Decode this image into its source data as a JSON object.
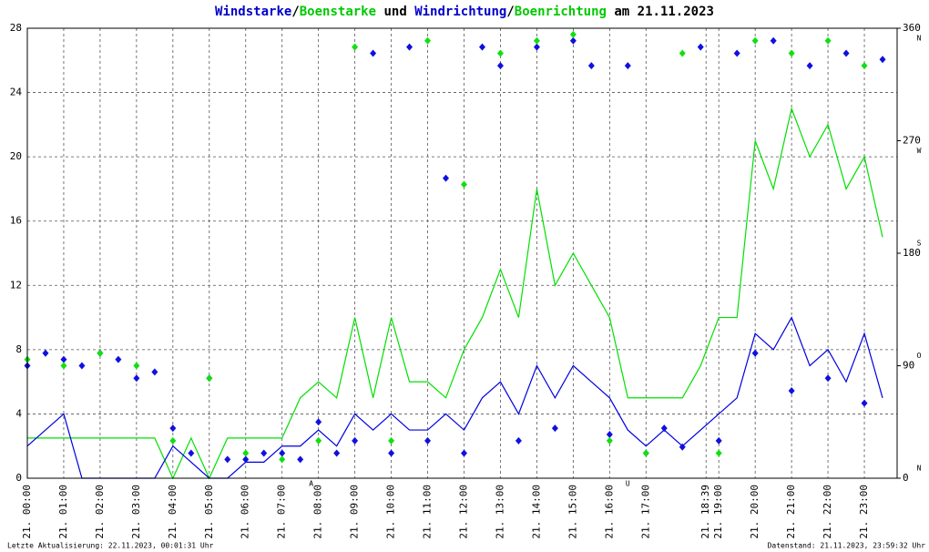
{
  "chart_data": {
    "type": "line",
    "title_parts": [
      {
        "text": "Windstarke",
        "color": "#0000c8"
      },
      {
        "text": "/",
        "color": "#000000"
      },
      {
        "text": "Boenstarke",
        "color": "#00c800"
      },
      {
        "text": " und ",
        "color": "#000000"
      },
      {
        "text": "Windrichtung",
        "color": "#0000c8"
      },
      {
        "text": "/",
        "color": "#000000"
      },
      {
        "text": "Boenrichtung",
        "color": "#00c800"
      },
      {
        "text": " am 21.11.2023",
        "color": "#000000"
      }
    ],
    "xlim": [
      0,
      23.9
    ],
    "xticks": [
      {
        "value": 0,
        "label": "21. 00:00"
      },
      {
        "value": 1,
        "label": "21. 01:00"
      },
      {
        "value": 2,
        "label": "21. 02:00"
      },
      {
        "value": 3,
        "label": "21. 03:00"
      },
      {
        "value": 4,
        "label": "21. 04:00"
      },
      {
        "value": 5,
        "label": "21. 05:00"
      },
      {
        "value": 6,
        "label": "21. 06:00"
      },
      {
        "value": 7,
        "label": "21. 07:00"
      },
      {
        "value": 8,
        "label": "21. 08:00"
      },
      {
        "value": 9,
        "label": "21. 09:00"
      },
      {
        "value": 10,
        "label": "21. 10:00"
      },
      {
        "value": 11,
        "label": "21. 11:00"
      },
      {
        "value": 12,
        "label": "21. 12:00"
      },
      {
        "value": 13,
        "label": "21. 13:00"
      },
      {
        "value": 14,
        "label": "21. 14:00"
      },
      {
        "value": 15,
        "label": "21. 15:00"
      },
      {
        "value": 16,
        "label": "21. 16:00"
      },
      {
        "value": 17,
        "label": "21. 17:00"
      },
      {
        "value": 18.65,
        "label": "21. 18:39"
      },
      {
        "value": 19,
        "label": "21. 19:00"
      },
      {
        "value": 20,
        "label": "21. 20:00"
      },
      {
        "value": 21,
        "label": "21. 21:00"
      },
      {
        "value": 22,
        "label": "21. 22:00"
      },
      {
        "value": 23,
        "label": "21. 23:00"
      }
    ],
    "ylim": [
      0,
      28
    ],
    "yticks": [
      0,
      4,
      8,
      12,
      16,
      20,
      24,
      28
    ],
    "y2lim": [
      0,
      360
    ],
    "y2ticks": [
      0,
      90,
      180,
      270,
      360
    ],
    "compass": [
      {
        "value": 0,
        "label": "N"
      },
      {
        "value": 90,
        "label": "O"
      },
      {
        "value": 180,
        "label": "S"
      },
      {
        "value": 270,
        "label": "W"
      },
      {
        "value": 360,
        "label": "N"
      }
    ],
    "grid": true,
    "sun_markers": [
      {
        "x": 7.8,
        "label": "A"
      },
      {
        "x": 16.5,
        "label": "U"
      }
    ],
    "series": [
      {
        "name": "Boenstarke",
        "mark": "line",
        "color": "#00e000",
        "x": [
          0,
          0.5,
          1,
          1.5,
          2,
          2.5,
          3,
          3.5,
          4,
          4.5,
          5,
          5.5,
          6,
          6.5,
          7,
          7.5,
          8,
          8.5,
          9,
          9.5,
          10,
          10.5,
          11,
          11.5,
          12,
          12.5,
          13,
          13.5,
          14,
          14.5,
          15,
          15.5,
          16,
          16.5,
          17,
          17.5,
          18,
          18.5,
          19,
          19.5,
          20,
          20.5,
          21,
          21.5,
          22,
          22.5,
          23,
          23.5
        ],
        "values": [
          2.5,
          2.5,
          2.5,
          2.5,
          2.5,
          2.5,
          2.5,
          2.5,
          0,
          2.5,
          0,
          2.5,
          2.5,
          2.5,
          2.5,
          5,
          6,
          5,
          10,
          5,
          10,
          6,
          6,
          5,
          8,
          10,
          13,
          10,
          18,
          12,
          14,
          12,
          10,
          5,
          5,
          5,
          5,
          7,
          10,
          10,
          21,
          18,
          23,
          20,
          22,
          18,
          20,
          15
        ]
      },
      {
        "name": "Windstarke",
        "mark": "line",
        "color": "#0000e0",
        "x": [
          0,
          0.5,
          1,
          1.5,
          2,
          2.5,
          3,
          3.5,
          4,
          4.5,
          5,
          5.5,
          6,
          6.5,
          7,
          7.5,
          8,
          8.5,
          9,
          9.5,
          10,
          10.5,
          11,
          11.5,
          12,
          12.5,
          13,
          13.5,
          14,
          14.5,
          15,
          15.5,
          16,
          16.5,
          17,
          17.5,
          18,
          18.5,
          19,
          19.5,
          20,
          20.5,
          21,
          21.5,
          22,
          22.5,
          23,
          23.5
        ],
        "values": [
          2,
          3,
          4,
          0,
          0,
          0,
          0,
          0,
          2,
          1,
          0,
          0,
          1,
          1,
          2,
          2,
          3,
          2,
          4,
          3,
          4,
          3,
          3,
          4,
          3,
          5,
          6,
          4,
          7,
          5,
          7,
          6,
          5,
          3,
          2,
          3,
          2,
          3,
          4,
          5,
          9,
          8,
          10,
          7,
          8,
          6,
          9,
          5
        ]
      },
      {
        "name": "Windrichtung",
        "mark": "marker",
        "axis": "y2",
        "color": "#1010e0",
        "x": [
          0,
          0.5,
          1,
          1.5,
          2,
          2.5,
          3,
          3.5,
          4,
          4.5,
          5,
          5.5,
          6,
          6.5,
          7,
          7.5,
          8,
          8.5,
          9,
          9.5,
          10,
          10.5,
          11,
          11.5,
          12,
          12.5,
          13,
          13.5,
          14,
          14.5,
          15,
          15.5,
          16,
          16.5,
          17,
          17.5,
          18,
          18.5,
          19,
          19.5,
          20,
          20.5,
          21,
          21.5,
          22,
          22.5,
          23,
          23.5
        ],
        "values": [
          90,
          100,
          95,
          90,
          100,
          95,
          80,
          85,
          40,
          20,
          80,
          15,
          15,
          20,
          20,
          15,
          45,
          20,
          30,
          340,
          20,
          345,
          30,
          240,
          20,
          345,
          330,
          30,
          345,
          40,
          350,
          330,
          35,
          330,
          20,
          40,
          25,
          345,
          30,
          340,
          100,
          350,
          70,
          330,
          80,
          340,
          60,
          335
        ]
      },
      {
        "name": "Boenrichtung",
        "mark": "marker",
        "axis": "y2",
        "color": "#10e010",
        "x": [
          0,
          1,
          2,
          3,
          4,
          5,
          6,
          7,
          8,
          9,
          10,
          11,
          12,
          13,
          14,
          15,
          16,
          17,
          18,
          19,
          20,
          21,
          22,
          23
        ],
        "values": [
          95,
          90,
          100,
          90,
          30,
          80,
          20,
          15,
          30,
          345,
          30,
          350,
          235,
          340,
          350,
          355,
          30,
          20,
          340,
          20,
          350,
          340,
          350,
          330
        ]
      }
    ],
    "footer_left": "Letzte Aktualisierung: 22.11.2023, 00:01:31 Uhr",
    "footer_right": "Datenstand: 21.11.2023, 23:59:32 Uhr"
  }
}
